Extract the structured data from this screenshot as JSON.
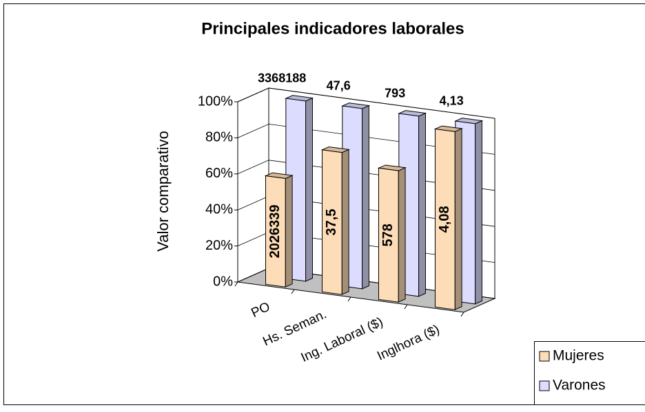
{
  "chart_data": {
    "type": "bar3d",
    "title": "Principales indicadores laborales",
    "y_axis_label": "Valor comparativo",
    "categories": [
      "PO",
      "Hs. Seman.",
      "Ing. Laboral ($)",
      "Inglhora ($)"
    ],
    "series": [
      {
        "name": "Mujeres",
        "color": "#fddcb8",
        "values": [
          60.2,
          78.8,
          72.9,
          98.8
        ],
        "value_labels": [
          "2026339",
          "37,5",
          "578",
          "4,08"
        ]
      },
      {
        "name": "Varones",
        "color": "#dcdcff",
        "values": [
          100,
          100,
          100,
          100
        ],
        "value_labels": [
          "3368188",
          "47,6",
          "793",
          "4,13"
        ]
      }
    ],
    "ylim": [
      0,
      100
    ],
    "yticks": [
      {
        "value": 0,
        "label": "0%"
      },
      {
        "value": 20,
        "label": "20%"
      },
      {
        "value": 40,
        "label": "40%"
      },
      {
        "value": 60,
        "label": "60%"
      },
      {
        "value": 80,
        "label": "80%"
      },
      {
        "value": 100,
        "label": "100%"
      }
    ],
    "grid": true,
    "legend": "right"
  }
}
